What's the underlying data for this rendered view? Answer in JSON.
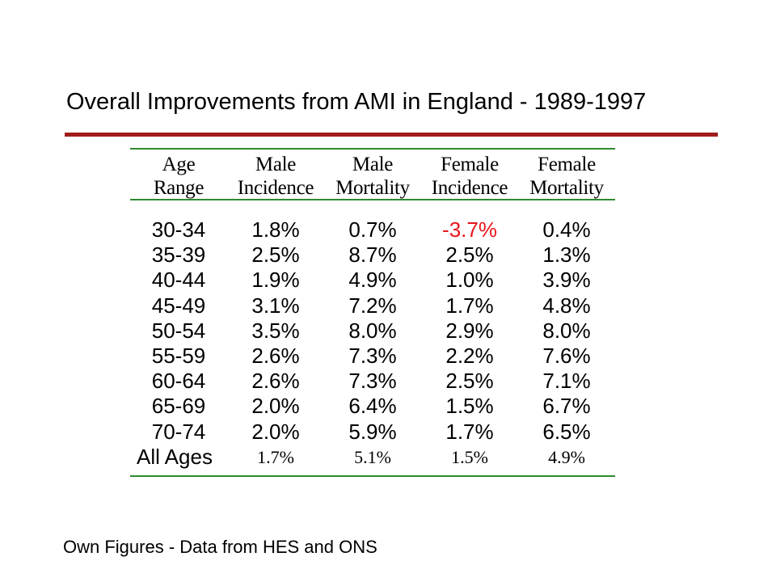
{
  "title": "Overall Improvements from AMI in England - 1989-1997",
  "table": {
    "headers": [
      [
        "Age",
        "Range"
      ],
      [
        "Male",
        "Incidence"
      ],
      [
        "Male",
        "Mortality"
      ],
      [
        "Female",
        "Incidence"
      ],
      [
        "Female",
        "Mortality"
      ]
    ],
    "rows": [
      [
        "30-34",
        "1.8%",
        "0.7%",
        "-3.7%",
        "0.4%"
      ],
      [
        "35-39",
        "2.5%",
        "8.7%",
        "2.5%",
        "1.3%"
      ],
      [
        "40-44",
        "1.9%",
        "4.9%",
        "1.0%",
        "3.9%"
      ],
      [
        "45-49",
        "3.1%",
        "7.2%",
        "1.7%",
        "4.8%"
      ],
      [
        "50-54",
        "3.5%",
        "8.0%",
        "2.9%",
        "8.0%"
      ],
      [
        "55-59",
        "2.6%",
        "7.3%",
        "2.2%",
        "7.6%"
      ],
      [
        "60-64",
        "2.6%",
        "7.3%",
        "2.5%",
        "7.1%"
      ],
      [
        "65-69",
        "2.0%",
        "6.4%",
        "1.5%",
        "6.7%"
      ],
      [
        "70-74",
        "2.0%",
        "5.9%",
        "1.7%",
        "6.5%"
      ]
    ],
    "totals": [
      "All Ages",
      "1.7%",
      "5.1%",
      "1.5%",
      "4.9%"
    ],
    "negative_color": "#e8141b",
    "rule_color": "#2e8b2e"
  },
  "title_rule_color": "#a01c1c",
  "footer": "Own Figures - Data from HES and ONS"
}
